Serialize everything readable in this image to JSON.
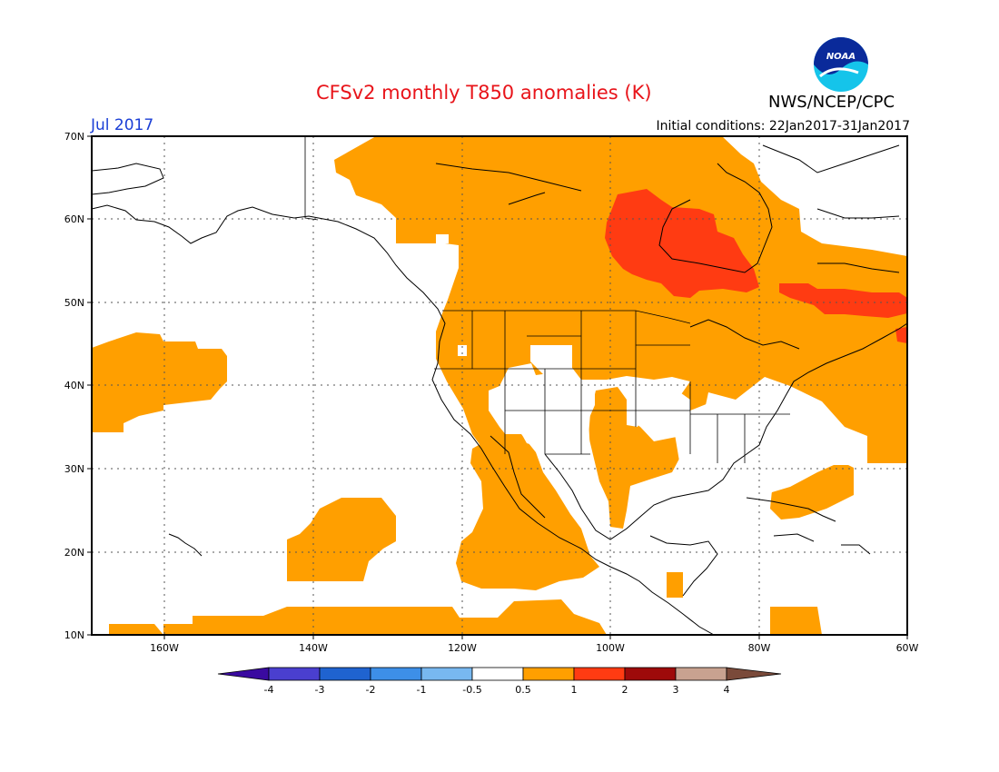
{
  "header": {
    "title": "CFSv2 monthly T850 anomalies (K)",
    "agency": "NWS/NCEP/CPC",
    "month": "Jul 2017",
    "initial_conditions": "Initial conditions: 22Jan2017-31Jan2017",
    "logo_text": "NOAA"
  },
  "map": {
    "lat_labels": [
      "70N",
      "60N",
      "50N",
      "40N",
      "30N",
      "20N",
      "10N"
    ],
    "lon_labels": [
      "160W",
      "140W",
      "120W",
      "100W",
      "80W",
      "60W"
    ],
    "extent": {
      "lon_min": -172,
      "lon_max": -60,
      "lat_min": 10,
      "lat_max": 70
    },
    "anomaly_regions": [
      {
        "name": "western-canada-alaska-warm",
        "class": "0.5-1"
      },
      {
        "name": "hudson-bay-warm",
        "class": "1-2"
      },
      {
        "name": "quebec-labrador-warm",
        "class": "1-2"
      },
      {
        "name": "northeast-pacific-warm",
        "class": "0.5-1"
      },
      {
        "name": "mexico-warm",
        "class": "0.5-1"
      },
      {
        "name": "subtropical-pacific-warm",
        "class": "0.5-1"
      },
      {
        "name": "western-atlantic-warm",
        "class": "0.5-1"
      }
    ]
  },
  "colorbar": {
    "labels": [
      "-4",
      "-3",
      "-2",
      "-1",
      "-0.5",
      "0.5",
      "1",
      "2",
      "3",
      "4"
    ],
    "colors": [
      "#3a0aa0",
      "#4a3fcf",
      "#1f63d0",
      "#3d8fe8",
      "#78b8f0",
      "#ffffff",
      "#ff9f00",
      "#ff3b12",
      "#9e0a0a",
      "#c8a290",
      "#7a4a3a"
    ]
  }
}
